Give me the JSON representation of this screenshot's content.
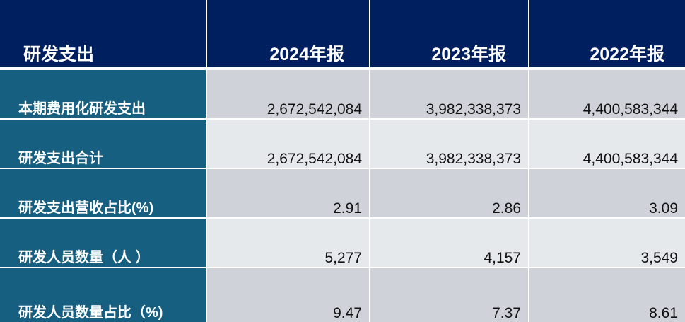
{
  "header": {
    "title": "研发支出",
    "columns": [
      "2024年报",
      "2023年报",
      "2022年报"
    ]
  },
  "rows": [
    {
      "label": "本期费用化研发支出",
      "values": [
        "2,672,542,084",
        "3,982,338,373",
        "4,400,583,344"
      ]
    },
    {
      "label": "研发支出合计",
      "values": [
        "2,672,542,084",
        "3,982,338,373",
        "4,400,583,344"
      ]
    },
    {
      "label": "研发支出营收占比(%)",
      "values": [
        "2.91",
        "2.86",
        "3.09"
      ]
    },
    {
      "label": "研发人员数量（人 ）",
      "values": [
        "5,277",
        "4,157",
        "3,549"
      ]
    },
    {
      "label": "研发人员数量占比（%)",
      "values": [
        "9.47",
        "7.37",
        "8.61"
      ]
    }
  ],
  "colors": {
    "header_bg": "#001f5f",
    "label_bg": "#175f80",
    "row_dark": "#cfd3d9",
    "row_light": "#e6e9ec"
  }
}
